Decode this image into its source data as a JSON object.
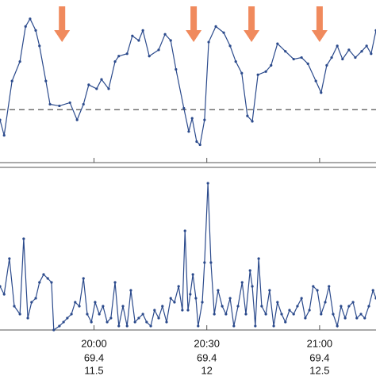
{
  "chart_data": [
    {
      "type": "line",
      "color": "#2b4a8c",
      "xlim": [
        -25,
        75
      ],
      "ylim": [
        0,
        100
      ],
      "reference_line": 33.2,
      "arrow_color": "#f08a5d",
      "arrows_x": [
        -8.5,
        26.5,
        41.9,
        60.0
      ],
      "x": [
        -25.0,
        -23.9,
        -21.8,
        -19.7,
        -18.2,
        -17.0,
        -15.5,
        -14.5,
        -12.8,
        -11.7,
        -9.2,
        -6.4,
        -4.5,
        -2.8,
        -1.4,
        0.7,
        2.0,
        3.9,
        5.6,
        6.6,
        8.8,
        10.2,
        11.9,
        13.0,
        14.7,
        17.2,
        18.9,
        20.4,
        21.8,
        23.9,
        25.2,
        26.1,
        27.3,
        28.2,
        29.4,
        30.5,
        32.4,
        34.5,
        36.2,
        37.7,
        39.3,
        40.8,
        42.1,
        43.6,
        45.7,
        47.1,
        48.8,
        50.9,
        53.1,
        55.2,
        56.9,
        59.0,
        60.4,
        61.9,
        63.2,
        64.7,
        66.1,
        67.8,
        69.5,
        71.2,
        72.5,
        73.7,
        75.0
      ],
      "values": [
        26.8,
        17.1,
        51.2,
        63.4,
        85.4,
        90.2,
        82.9,
        73.2,
        51.2,
        36.6,
        35.6,
        37.6,
        26.8,
        36.6,
        48.8,
        46.3,
        52.2,
        46.3,
        63.4,
        66.8,
        68.3,
        79.5,
        76.6,
        82.9,
        66.8,
        70.7,
        80.5,
        76.6,
        58.5,
        34.1,
        19.5,
        27.8,
        13.2,
        11.2,
        26.8,
        75.6,
        85.4,
        81.5,
        73.2,
        63.4,
        56.1,
        29.3,
        25.9,
        55.1,
        57.1,
        61.0,
        74.6,
        69.8,
        64.9,
        65.9,
        62.0,
        51.2,
        43.9,
        61.0,
        65.9,
        73.2,
        64.9,
        70.7,
        65.9,
        69.8,
        73.2,
        68.3,
        82.9
      ]
    },
    {
      "type": "line",
      "color": "#2b4a8c",
      "xlim": [
        -25,
        75
      ],
      "ylim": [
        0,
        100
      ],
      "xticks": [
        {
          "value": 0,
          "label": "20:00"
        },
        {
          "value": 30,
          "label": "20:30"
        },
        {
          "value": 60,
          "label": "21:00"
        }
      ],
      "xtick_rows": [
        [
          "69.4",
          "69.4",
          "69.4"
        ],
        [
          "11.5",
          "12",
          "12.5"
        ]
      ],
      "x": [
        -25.0,
        -23.9,
        -22.5,
        -21.2,
        -19.7,
        -18.7,
        -17.6,
        -16.6,
        -15.5,
        -14.5,
        -13.4,
        -12.3,
        -11.3,
        -10.7,
        -9.2,
        -8.1,
        -7.1,
        -6.0,
        -5.0,
        -3.9,
        -2.8,
        -1.8,
        -0.7,
        0.3,
        1.4,
        2.4,
        3.5,
        4.5,
        5.6,
        6.6,
        7.7,
        8.8,
        9.8,
        10.9,
        11.9,
        13.0,
        14.0,
        15.1,
        16.1,
        17.2,
        18.2,
        19.3,
        20.4,
        21.4,
        22.5,
        23.5,
        24.2,
        25.0,
        25.6,
        26.3,
        27.1,
        27.7,
        28.8,
        29.4,
        30.3,
        31.1,
        32.0,
        33.0,
        34.1,
        35.1,
        36.2,
        37.2,
        38.3,
        39.4,
        40.4,
        41.5,
        42.1,
        42.9,
        43.8,
        44.6,
        45.7,
        46.7,
        47.8,
        48.8,
        49.9,
        50.9,
        52.0,
        53.1,
        54.1,
        55.2,
        56.2,
        57.3,
        58.3,
        59.4,
        60.4,
        61.5,
        62.5,
        63.6,
        64.7,
        65.7,
        66.8,
        67.8,
        68.9,
        69.9,
        71.0,
        72.0,
        73.1,
        74.2,
        75.0
      ],
      "values": [
        27.5,
        22.5,
        45,
        15,
        10,
        57.5,
        7.5,
        17.5,
        20,
        30,
        35,
        32.5,
        30,
        0,
        2.5,
        5,
        7.5,
        10,
        17.5,
        15,
        32.5,
        10,
        5,
        17.5,
        10,
        15,
        5,
        7.5,
        30,
        2.5,
        15,
        2.5,
        25,
        5,
        7.5,
        10,
        5,
        2.5,
        12.5,
        7.5,
        15,
        5,
        20,
        17.5,
        27.5,
        12.5,
        62.5,
        12.5,
        22.5,
        35,
        20,
        2.5,
        17.5,
        42.5,
        92.5,
        42.5,
        10,
        25,
        15,
        10,
        20,
        2.5,
        15,
        30,
        10,
        37.5,
        27.5,
        2.5,
        45,
        15,
        10,
        25,
        2.5,
        17.5,
        10,
        5,
        12.5,
        10,
        15,
        20,
        7.5,
        12.5,
        27.5,
        25,
        10,
        17.5,
        27.5,
        10,
        2.5,
        15,
        7.5,
        15,
        17.5,
        7.5,
        10,
        7.5,
        15,
        25,
        20
      ]
    }
  ]
}
